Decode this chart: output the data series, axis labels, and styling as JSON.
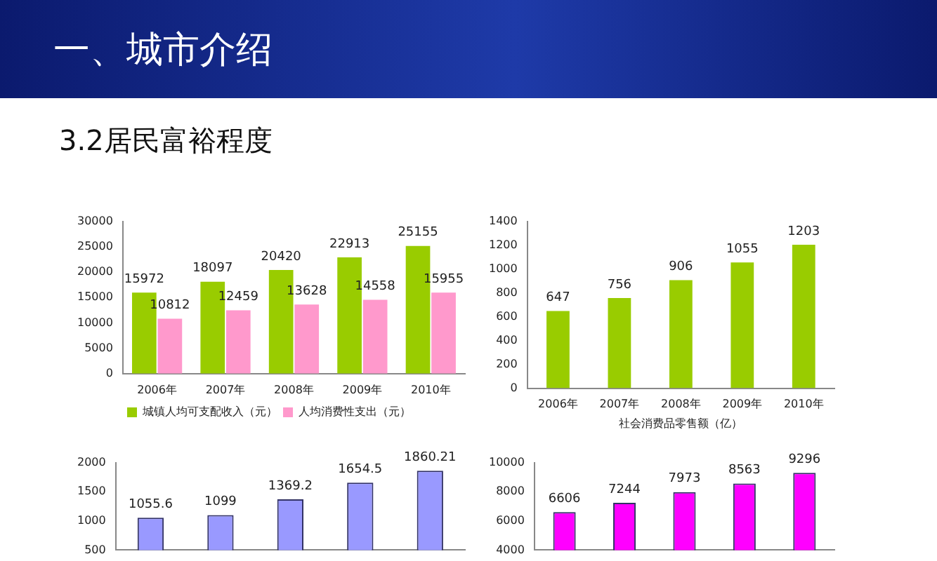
{
  "chart_data": [
    {
      "type": "bar",
      "title": "一、城市介绍",
      "subtitle": "3.2居民富裕程度",
      "categories": [
        "2006年",
        "2007年",
        "2008年",
        "2009年",
        "2010年"
      ],
      "series": [
        {
          "name": "城镇人均可支配收入（元）",
          "color": "#99cc00",
          "values": [
            15972,
            18097,
            20420,
            22913,
            25155
          ]
        },
        {
          "name": "人均消费性支出（元）",
          "color": "#ff99cc",
          "values": [
            10812,
            12459,
            13628,
            14558,
            15955
          ]
        }
      ],
      "ylim": [
        0,
        30000
      ],
      "yticks": [
        0,
        5000,
        10000,
        15000,
        20000,
        25000,
        30000
      ],
      "data_labels": true,
      "legend": "bottom",
      "grid": false
    },
    {
      "type": "bar",
      "categories": [
        "2006年",
        "2007年",
        "2008年",
        "2009年",
        "2010年"
      ],
      "xlabel": "社会消费品零售额（亿）",
      "series": [
        {
          "color": "#99cc00",
          "values": [
            647,
            756,
            906,
            1055,
            1203
          ]
        }
      ],
      "ylim": [
        0,
        1400
      ],
      "yticks": [
        0,
        200,
        400,
        600,
        800,
        1000,
        1200,
        1400
      ],
      "data_labels": true,
      "grid": false
    },
    {
      "type": "bar",
      "categories": [
        null,
        null,
        null,
        null,
        null
      ],
      "series": [
        {
          "color": "#9999ff",
          "values": [
            1055.6,
            1099,
            1369.2,
            1654.5,
            1860.21
          ]
        }
      ],
      "ylim": [
        500,
        2000
      ],
      "yticks": [
        500,
        1000,
        1500,
        2000
      ],
      "data_labels": true,
      "grid": false,
      "tick_labels": "y"
    },
    {
      "type": "bar",
      "categories": [
        null,
        null,
        null,
        null,
        null
      ],
      "series": [
        {
          "color": "#ff00ff",
          "values": [
            6606,
            7244,
            7973,
            8563,
            9296
          ]
        }
      ],
      "ylim": [
        4000,
        10000
      ],
      "yticks": [
        4000,
        6000,
        8000,
        10000
      ],
      "data_labels": true,
      "grid": false,
      "tick_labels": "y"
    }
  ]
}
